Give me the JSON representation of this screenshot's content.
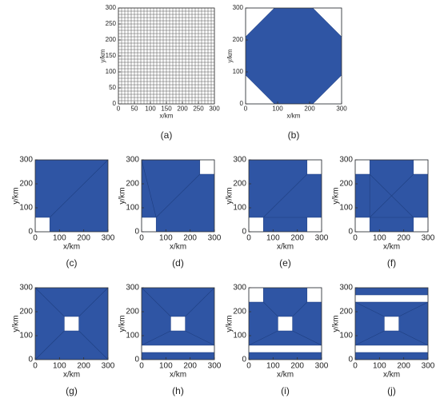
{
  "chart_data": [
    {
      "type": "mesh",
      "caption": "(a)",
      "xlabel": "x/km",
      "ylabel": "y/km",
      "xlim": [
        0,
        300
      ],
      "ylim": [
        0,
        300
      ],
      "xticks": [
        0,
        50,
        100,
        150,
        200,
        250,
        300
      ],
      "yticks": [
        0,
        50,
        100,
        150,
        200,
        250,
        300
      ],
      "mesh_step": 10,
      "color": "#555555"
    },
    {
      "type": "region",
      "caption": "(b)",
      "xlabel": "x/km",
      "ylabel": "y/km",
      "xlim": [
        0,
        300
      ],
      "ylim": [
        0,
        300
      ],
      "xticks": [
        0,
        100,
        200,
        300
      ],
      "yticks": [
        0,
        100,
        200,
        300
      ],
      "color": "#2f55a4",
      "holes": [
        [
          [
            0,
            0
          ],
          [
            90,
            0
          ],
          [
            0,
            90
          ]
        ],
        [
          [
            210,
            0
          ],
          [
            300,
            0
          ],
          [
            300,
            90
          ]
        ],
        [
          [
            300,
            210
          ],
          [
            300,
            300
          ],
          [
            210,
            300
          ]
        ],
        [
          [
            0,
            210
          ],
          [
            90,
            300
          ],
          [
            0,
            300
          ]
        ]
      ],
      "lines": []
    },
    {
      "type": "region",
      "caption": "(c)",
      "xlabel": "x/km",
      "ylabel": "y/km",
      "xlim": [
        0,
        300
      ],
      "ylim": [
        0,
        300
      ],
      "xticks": [
        0,
        100,
        200,
        300
      ],
      "yticks": [
        0,
        100,
        200,
        300
      ],
      "color": "#2f55a4",
      "holes": [
        [
          [
            0,
            0
          ],
          [
            60,
            0
          ],
          [
            60,
            60
          ],
          [
            0,
            60
          ]
        ]
      ],
      "lines": [
        [
          [
            60,
            60
          ],
          [
            300,
            300
          ]
        ]
      ]
    },
    {
      "type": "region",
      "caption": "(d)",
      "xlabel": "x/km",
      "ylabel": "y/km",
      "xlim": [
        0,
        300
      ],
      "ylim": [
        0,
        300
      ],
      "xticks": [
        0,
        100,
        200,
        300
      ],
      "yticks": [
        0,
        100,
        200,
        300
      ],
      "color": "#2f55a4",
      "holes": [
        [
          [
            0,
            0
          ],
          [
            60,
            0
          ],
          [
            60,
            60
          ],
          [
            0,
            60
          ]
        ],
        [
          [
            240,
            240
          ],
          [
            300,
            240
          ],
          [
            300,
            300
          ],
          [
            240,
            300
          ]
        ]
      ],
      "lines": [
        [
          [
            60,
            60
          ],
          [
            240,
            240
          ]
        ],
        [
          [
            0,
            300
          ],
          [
            60,
            60
          ]
        ]
      ]
    },
    {
      "type": "region",
      "caption": "(e)",
      "xlabel": "x/km",
      "ylabel": "y/km",
      "xlim": [
        0,
        300
      ],
      "ylim": [
        0,
        300
      ],
      "xticks": [
        0,
        100,
        200,
        300
      ],
      "yticks": [
        0,
        100,
        200,
        300
      ],
      "color": "#2f55a4",
      "holes": [
        [
          [
            0,
            0
          ],
          [
            60,
            0
          ],
          [
            60,
            60
          ],
          [
            0,
            60
          ]
        ],
        [
          [
            240,
            0
          ],
          [
            300,
            0
          ],
          [
            300,
            60
          ],
          [
            240,
            60
          ]
        ],
        [
          [
            240,
            240
          ],
          [
            300,
            240
          ],
          [
            300,
            300
          ],
          [
            240,
            300
          ]
        ]
      ],
      "lines": [
        [
          [
            60,
            60
          ],
          [
            240,
            60
          ]
        ],
        [
          [
            60,
            60
          ],
          [
            240,
            240
          ]
        ]
      ]
    },
    {
      "type": "region",
      "caption": "(f)",
      "xlabel": "x/km",
      "ylabel": "y/km",
      "xlim": [
        0,
        300
      ],
      "ylim": [
        0,
        300
      ],
      "xticks": [
        0,
        100,
        200,
        300
      ],
      "yticks": [
        0,
        100,
        200,
        300
      ],
      "color": "#2f55a4",
      "holes": [
        [
          [
            0,
            0
          ],
          [
            60,
            0
          ],
          [
            60,
            60
          ],
          [
            0,
            60
          ]
        ],
        [
          [
            240,
            0
          ],
          [
            300,
            0
          ],
          [
            300,
            60
          ],
          [
            240,
            60
          ]
        ],
        [
          [
            240,
            240
          ],
          [
            300,
            240
          ],
          [
            300,
            300
          ],
          [
            240,
            300
          ]
        ],
        [
          [
            0,
            240
          ],
          [
            60,
            240
          ],
          [
            60,
            300
          ],
          [
            0,
            300
          ]
        ]
      ],
      "lines": [
        [
          [
            60,
            60
          ],
          [
            240,
            60
          ]
        ],
        [
          [
            60,
            60
          ],
          [
            60,
            240
          ]
        ],
        [
          [
            60,
            60
          ],
          [
            240,
            240
          ]
        ],
        [
          [
            60,
            240
          ],
          [
            240,
            60
          ]
        ]
      ]
    },
    {
      "type": "region",
      "caption": "(g)",
      "xlabel": "x/km",
      "ylabel": "y/km",
      "xlim": [
        0,
        300
      ],
      "ylim": [
        0,
        300
      ],
      "xticks": [
        0,
        100,
        200,
        300
      ],
      "yticks": [
        0,
        100,
        200,
        300
      ],
      "color": "#2f55a4",
      "holes": [
        [
          [
            120,
            120
          ],
          [
            180,
            120
          ],
          [
            180,
            180
          ],
          [
            120,
            180
          ]
        ]
      ],
      "lines": [
        [
          [
            0,
            0
          ],
          [
            120,
            120
          ]
        ],
        [
          [
            300,
            0
          ],
          [
            180,
            120
          ]
        ],
        [
          [
            300,
            300
          ],
          [
            180,
            180
          ]
        ],
        [
          [
            0,
            300
          ],
          [
            120,
            180
          ]
        ]
      ]
    },
    {
      "type": "region",
      "caption": "(h)",
      "xlabel": "x/km",
      "ylabel": "y/km",
      "xlim": [
        0,
        300
      ],
      "ylim": [
        0,
        300
      ],
      "xticks": [
        0,
        100,
        200,
        300
      ],
      "yticks": [
        0,
        100,
        200,
        300
      ],
      "color": "#2f55a4",
      "holes": [
        [
          [
            120,
            120
          ],
          [
            180,
            120
          ],
          [
            180,
            180
          ],
          [
            120,
            180
          ]
        ],
        [
          [
            0,
            30
          ],
          [
            300,
            30
          ],
          [
            300,
            60
          ],
          [
            0,
            60
          ]
        ]
      ],
      "lines": [
        [
          [
            0,
            60
          ],
          [
            120,
            120
          ]
        ],
        [
          [
            300,
            60
          ],
          [
            180,
            120
          ]
        ],
        [
          [
            300,
            300
          ],
          [
            180,
            180
          ]
        ],
        [
          [
            0,
            300
          ],
          [
            120,
            180
          ]
        ]
      ]
    },
    {
      "type": "region",
      "caption": "(i)",
      "xlabel": "x/km",
      "ylabel": "y/km",
      "xlim": [
        0,
        300
      ],
      "ylim": [
        0,
        300
      ],
      "xticks": [
        0,
        100,
        200,
        300
      ],
      "yticks": [
        0,
        100,
        200,
        300
      ],
      "color": "#2f55a4",
      "holes": [
        [
          [
            120,
            120
          ],
          [
            180,
            120
          ],
          [
            180,
            180
          ],
          [
            120,
            180
          ]
        ],
        [
          [
            0,
            30
          ],
          [
            300,
            30
          ],
          [
            300,
            60
          ],
          [
            0,
            60
          ]
        ],
        [
          [
            0,
            240
          ],
          [
            60,
            240
          ],
          [
            60,
            300
          ],
          [
            0,
            300
          ]
        ],
        [
          [
            240,
            240
          ],
          [
            300,
            240
          ],
          [
            300,
            300
          ],
          [
            240,
            300
          ]
        ]
      ],
      "lines": [
        [
          [
            0,
            60
          ],
          [
            120,
            120
          ]
        ],
        [
          [
            300,
            60
          ],
          [
            180,
            120
          ]
        ],
        [
          [
            240,
            240
          ],
          [
            180,
            180
          ]
        ],
        [
          [
            60,
            240
          ],
          [
            120,
            180
          ]
        ]
      ]
    },
    {
      "type": "region",
      "caption": "(j)",
      "xlabel": "x/km",
      "ylabel": "y/km",
      "xlim": [
        0,
        300
      ],
      "ylim": [
        0,
        300
      ],
      "xticks": [
        0,
        100,
        200,
        300
      ],
      "yticks": [
        0,
        100,
        200,
        300
      ],
      "color": "#2f55a4",
      "holes": [
        [
          [
            120,
            120
          ],
          [
            180,
            120
          ],
          [
            180,
            180
          ],
          [
            120,
            180
          ]
        ],
        [
          [
            0,
            30
          ],
          [
            300,
            30
          ],
          [
            300,
            60
          ],
          [
            0,
            60
          ]
        ],
        [
          [
            0,
            240
          ],
          [
            300,
            240
          ],
          [
            300,
            270
          ],
          [
            0,
            270
          ]
        ]
      ],
      "lines": [
        [
          [
            0,
            60
          ],
          [
            120,
            120
          ]
        ],
        [
          [
            300,
            60
          ],
          [
            180,
            120
          ]
        ],
        [
          [
            300,
            240
          ],
          [
            180,
            180
          ]
        ],
        [
          [
            0,
            240
          ],
          [
            120,
            180
          ]
        ]
      ]
    }
  ]
}
